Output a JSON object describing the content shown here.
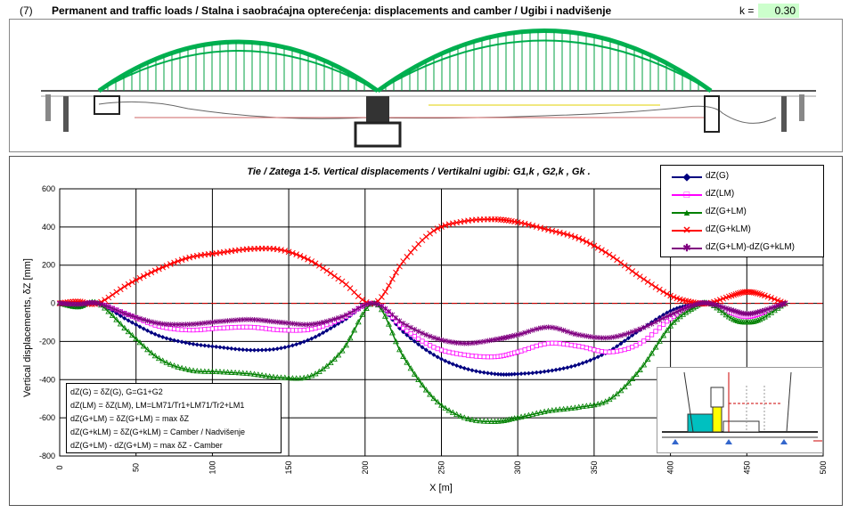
{
  "header": {
    "number": "(7)",
    "title": "Permanent and traffic loads / Stalna i saobraćajna opterećenja: displacements and camber / Ugibi i nadvišenje",
    "k_label": "k =",
    "k_value": "0.30"
  },
  "colors": {
    "arch": "#00b050",
    "grid": "#000000",
    "dZ_G": "#000080",
    "dZ_LM": "#ff00ff",
    "dZ_GLM": "#008000",
    "dZ_GkLM": "#ff0000",
    "dZ_diff": "#800080"
  },
  "notes": [
    "dZ(G) = δZ(G), G=G1+G2",
    "dZ(LM) = δZ(LM), LM=LM71/Tr1+LM71/Tr2+LM1",
    "dZ(G+LM) = δZ(G+LM) = max δZ",
    "dZ(G+kLM) = δZ(G+kLM) = Camber / Nadvišenje",
    "dZ(G+LM) - dZ(G+LM) = max δZ - Camber"
  ],
  "chart_data": {
    "type": "line",
    "title": "Tie / Zatega 1-5. Vertical displacements / Vertikalni ugibi: G1,k , G2,k , Gk .",
    "xlabel": "X [m]",
    "ylabel": "Vertical displacements, δZ [mm]",
    "xlim": [
      0,
      500
    ],
    "ylim": [
      -800,
      600
    ],
    "xticks": [
      0,
      50,
      100,
      150,
      200,
      250,
      300,
      350,
      400,
      450,
      500
    ],
    "yticks": [
      -800,
      -600,
      -400,
      -200,
      0,
      200,
      400,
      600
    ],
    "grid": true,
    "legend_position": "top-right",
    "x": [
      0,
      12,
      25,
      45,
      65,
      85,
      105,
      125,
      145,
      165,
      185,
      206,
      225,
      245,
      265,
      285,
      300,
      320,
      340,
      360,
      380,
      400,
      415,
      425,
      440,
      450,
      460,
      475
    ],
    "series": [
      {
        "name": "dZ(G)",
        "marker": "diamond",
        "values": [
          0,
          -20,
          0,
          -90,
          -170,
          -210,
          -230,
          -245,
          -235,
          -185,
          -95,
          0,
          -150,
          -270,
          -340,
          -370,
          -370,
          -355,
          -320,
          -250,
          -140,
          -40,
          -5,
          0,
          -40,
          -60,
          -45,
          0
        ]
      },
      {
        "name": "dZ(LM)",
        "marker": "square",
        "values": [
          0,
          -5,
          0,
          -60,
          -120,
          -140,
          -130,
          -125,
          -140,
          -135,
          -80,
          0,
          -130,
          -230,
          -270,
          -280,
          -255,
          -210,
          -225,
          -255,
          -210,
          -80,
          -10,
          0,
          -50,
          -70,
          -50,
          0
        ]
      },
      {
        "name": "dZ(G+LM)",
        "marker": "triangle",
        "values": [
          0,
          -20,
          0,
          -150,
          -290,
          -350,
          -360,
          -370,
          -390,
          -380,
          -250,
          0,
          -280,
          -500,
          -600,
          -620,
          -600,
          -565,
          -545,
          -505,
          -350,
          -120,
          -25,
          0,
          -80,
          -100,
          -80,
          0
        ]
      },
      {
        "name": "dZ(G+kLM)",
        "marker": "x",
        "values": [
          0,
          10,
          0,
          100,
          180,
          240,
          265,
          285,
          280,
          220,
          115,
          0,
          220,
          380,
          430,
          440,
          425,
          385,
          340,
          255,
          140,
          40,
          5,
          0,
          40,
          60,
          45,
          0
        ]
      },
      {
        "name": "dZ(G+LM)-dZ(G+kLM)",
        "marker": "asterisk",
        "values": [
          0,
          -5,
          0,
          -60,
          -105,
          -110,
          -95,
          -85,
          -100,
          -110,
          -70,
          0,
          -105,
          -180,
          -210,
          -190,
          -165,
          -125,
          -165,
          -180,
          -135,
          -60,
          -10,
          0,
          -35,
          -55,
          -40,
          0
        ]
      }
    ]
  }
}
